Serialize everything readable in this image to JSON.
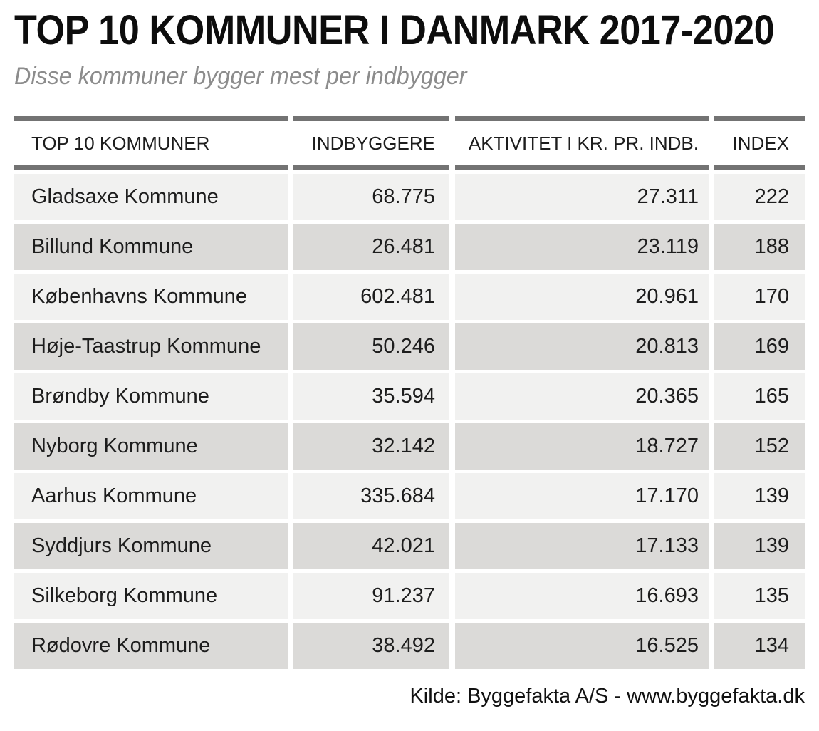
{
  "chart_data": {
    "type": "table",
    "title": "TOP 10 KOMMUNER I DANMARK 2017-2020",
    "subtitle": "Disse kommuner bygger mest per indbygger",
    "columns": [
      "TOP 10 KOMMUNER",
      "INDBYGGERE",
      "AKTIVITET I KR. PR. INDB.",
      "INDEX"
    ],
    "rows": [
      [
        "Gladsaxe Kommune",
        "68.775",
        "27.311",
        "222"
      ],
      [
        "Billund Kommune",
        "26.481",
        "23.119",
        "188"
      ],
      [
        "Københavns Kommune",
        "602.481",
        "20.961",
        "170"
      ],
      [
        "Høje-Taastrup Kommune",
        "50.246",
        "20.813",
        "169"
      ],
      [
        "Brøndby Kommune",
        "35.594",
        "20.365",
        "165"
      ],
      [
        "Nyborg Kommune",
        "32.142",
        "18.727",
        "152"
      ],
      [
        "Aarhus Kommune",
        "335.684",
        "17.170",
        "139"
      ],
      [
        "Syddjurs Kommune",
        "42.021",
        "17.133",
        "139"
      ],
      [
        "Silkeborg Kommune",
        "91.237",
        "16.693",
        "135"
      ],
      [
        "Rødovre Kommune",
        "38.492",
        "16.525",
        "134"
      ]
    ],
    "source": "Kilde: Byggefakta A/S - www.byggefakta.dk"
  },
  "colors": {
    "row_light": "#f1f1f0",
    "row_dark": "#dbdad8",
    "header_rule": "#737373",
    "subtitle_text": "#8c8c8c",
    "body_text": "#1d1d1d"
  }
}
